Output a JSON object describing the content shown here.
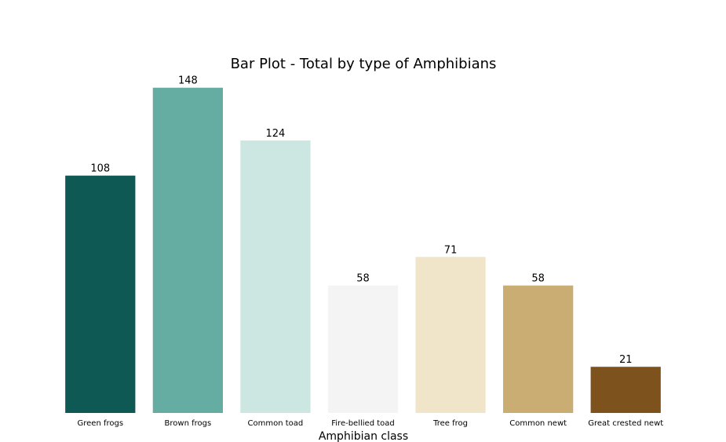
{
  "chart_data": {
    "type": "bar",
    "title": "Bar Plot - Total by type of Amphibians",
    "xlabel": "Amphibian class",
    "ylabel": "",
    "ylim": [
      0,
      155.4
    ],
    "grid": false,
    "categories": [
      "Green frogs",
      "Brown frogs",
      "Common toad",
      "Fire-bellied toad",
      "Tree frog",
      "Common newt",
      "Great crested newt"
    ],
    "values": [
      108,
      148,
      124,
      58,
      71,
      58,
      21
    ],
    "colors": [
      "#0f5954",
      "#65ada3",
      "#cce6e2",
      "#f4f4f4",
      "#f0e5c9",
      "#c9ad73",
      "#7d521d"
    ]
  }
}
